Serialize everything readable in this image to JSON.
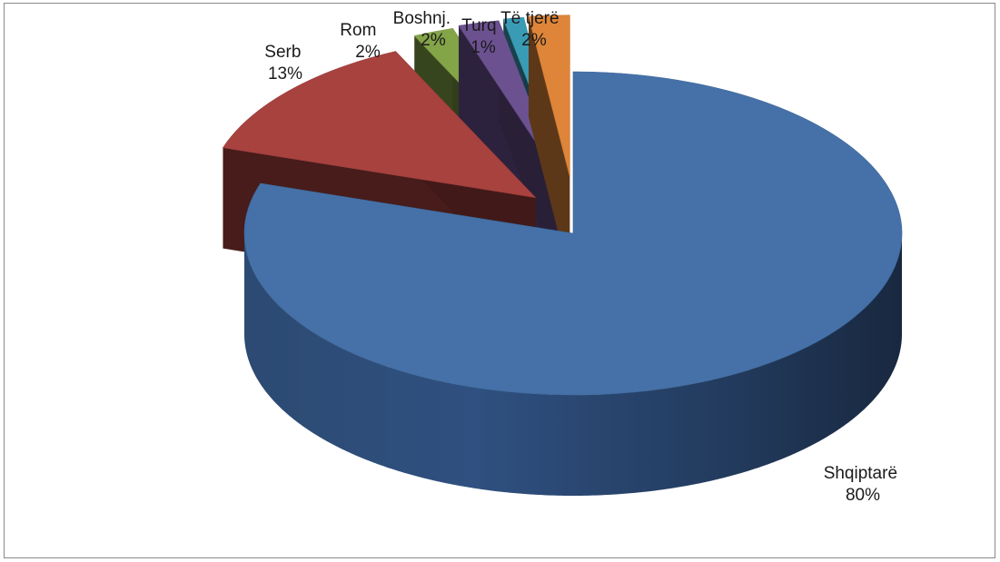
{
  "chart_data": {
    "type": "pie",
    "style": "3d-exploded",
    "title": "",
    "legend": "none",
    "categories": [
      "Shqiptarë",
      "Serb",
      "Rom",
      "Boshnj.",
      "Turq",
      "Të tjerë"
    ],
    "values": [
      80,
      13,
      2,
      2,
      1,
      2
    ],
    "labels": [
      "80%",
      "13%",
      "2%",
      "2%",
      "1%",
      "2%"
    ],
    "colors": [
      "#4571a8",
      "#a8423f",
      "#84a448",
      "#6c5191",
      "#3a9bb5",
      "#de8539"
    ]
  }
}
